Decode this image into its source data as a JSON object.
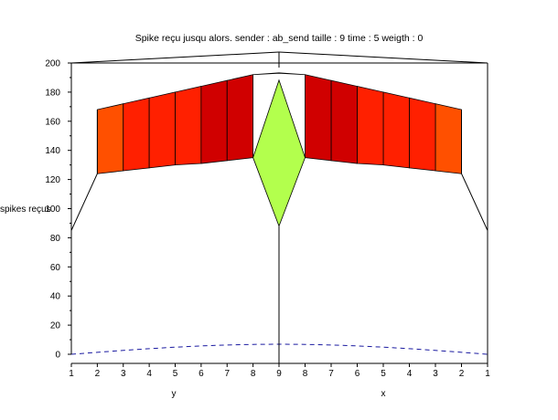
{
  "chart_data": {
    "type": "surface3d",
    "title": "Spike reçu jusqu alors. sender : ab_send taille : 9 time : 5 weigth : 0",
    "zlabel": "spikes reçus",
    "xlabel": "x",
    "ylabel": "y",
    "zlim": [
      0,
      200
    ],
    "z_ticks": [
      0,
      20,
      40,
      60,
      80,
      100,
      120,
      140,
      160,
      180,
      200
    ],
    "y_ticks": [
      1,
      2,
      3,
      4,
      5,
      6,
      7,
      8,
      9
    ],
    "x_ticks": [
      9,
      8,
      7,
      6,
      5,
      4,
      3,
      2,
      1
    ],
    "grid": false,
    "colormap": [
      "#b3ff4d",
      "#ffff00",
      "#ffd700",
      "#ffb000",
      "#ff8000",
      "#ff5000",
      "#ff2000",
      "#d00000"
    ],
    "surface_profile": {
      "index": [
        1,
        2,
        3,
        4,
        5,
        6,
        7,
        8,
        9
      ],
      "ridge_z": [
        125,
        168,
        172,
        176,
        180,
        184,
        188,
        192,
        193
      ],
      "front_z": [
        85,
        124,
        126,
        128,
        130,
        131,
        133,
        135,
        88
      ]
    }
  }
}
